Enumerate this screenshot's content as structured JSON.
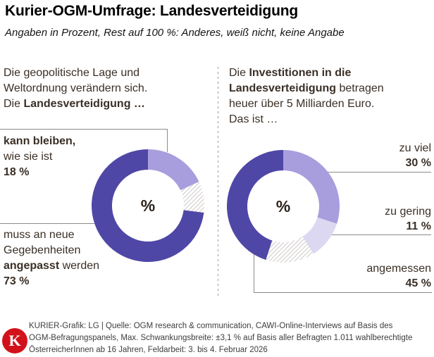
{
  "header": {
    "title": "Kurier-OGM-Umfrage: Landesverteidigung",
    "subtitle": "Angaben in Prozent, Rest auf 100 %: Anderes, weiß nicht, keine Angabe"
  },
  "colors": {
    "dark_purple": "#4f47a6",
    "light_purple": "#a89edd",
    "pale_purple": "#ddd8f1",
    "hatch_gray": "#d6d2d0",
    "connector_gray": "#8e8a85",
    "kurier_red": "#d2121b",
    "text_brown": "#3a2f26"
  },
  "chart_data": [
    {
      "type": "donut",
      "question": [
        [
          {
            "t": "Die geopolitische Lage und"
          }
        ],
        [
          {
            "t": "Weltordnung verändern sich."
          }
        ],
        [
          {
            "t": "Die "
          },
          {
            "t": "Landesverteidigung …",
            "b": true
          }
        ]
      ],
      "center_label": "%",
      "unit": "%",
      "segments": [
        {
          "label": "kann bleiben, wie sie ist",
          "value": 18,
          "color": "#a89edd"
        },
        {
          "label": "Rest (Anderes, weiß nicht, keine Angabe)",
          "value": 9,
          "hatch": true
        },
        {
          "label": "muss an neue Gegebenheiten angepasst werden",
          "value": 73,
          "color": "#4f47a6"
        }
      ]
    },
    {
      "type": "donut",
      "question": [
        [
          {
            "t": "Die "
          },
          {
            "t": "Investitionen in die",
            "b": true
          }
        ],
        [
          {
            "t": "Landesverteidigung",
            "b": true
          },
          {
            "t": " betragen"
          }
        ],
        [
          {
            "t": "heuer über 5 Milliarden Euro."
          }
        ],
        [
          {
            "t": "Das ist …"
          }
        ]
      ],
      "center_label": "%",
      "unit": "%",
      "segments": [
        {
          "label": "zu viel",
          "value": 30,
          "color": "#a89edd"
        },
        {
          "label": "zu gering",
          "value": 11,
          "color": "#ddd8f1"
        },
        {
          "label": "Rest (Anderes, weiß nicht, keine Angabe)",
          "value": 14,
          "hatch": true
        },
        {
          "label": "angemessen",
          "value": 45,
          "color": "#4f47a6"
        }
      ]
    }
  ],
  "callouts": {
    "kann": [
      [
        {
          "t": "kann bleiben,",
          "b": true
        }
      ],
      [
        {
          "t": "wie sie ist"
        }
      ],
      [
        {
          "t": "18 %",
          "b": true
        }
      ]
    ],
    "muss": [
      [
        {
          "t": "muss an neue"
        }
      ],
      [
        {
          "t": "Gegebenheiten"
        }
      ],
      [
        {
          "t": "angepasst",
          "b": true
        },
        {
          "t": " werden"
        }
      ],
      [
        {
          "t": "73 %",
          "b": true
        }
      ]
    ],
    "zuviel": [
      [
        {
          "t": "zu viel"
        }
      ],
      [
        {
          "t": "30 %",
          "b": true
        }
      ]
    ],
    "zugering": [
      [
        {
          "t": "zu gering"
        }
      ],
      [
        {
          "t": "11 %",
          "b": true
        }
      ]
    ],
    "angemessen": [
      [
        {
          "t": "angemessen"
        }
      ],
      [
        {
          "t": "45 %",
          "b": true
        }
      ]
    ]
  },
  "footer": {
    "logo_letter": "K",
    "credit_lines": [
      "KURIER-Grafik: LG | Quelle: OGM research & communication, CAWI-Online-Interviews auf Basis des",
      "OGM-Befragungspanels, Max. Schwankungsbreite: ±3,1 % auf Basis aller Befragten 1.011 wahlberechtigte",
      "ÖsterreicherInnen ab 16 Jahren, Feldarbeit: 3. bis 4. Februar 2026"
    ]
  }
}
